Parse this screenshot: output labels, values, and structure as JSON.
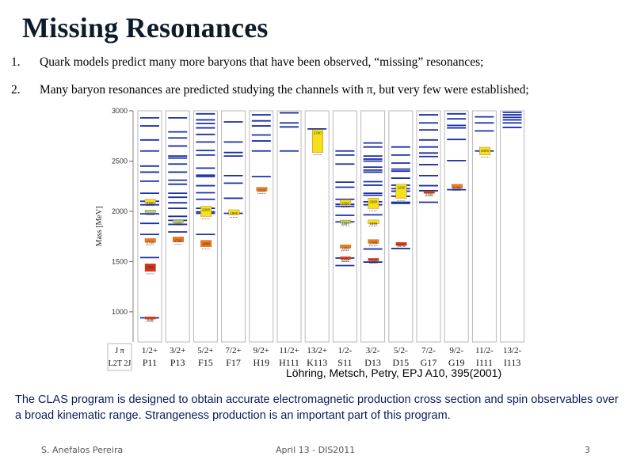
{
  "slide": {
    "title": "Missing Resonances",
    "bullets": [
      {
        "num": "1.",
        "text": "Quark models predict many more baryons that have been observed, “missing” resonances;"
      },
      {
        "num": "2.",
        "text": "Many baryon resonances are predicted studying the channels with π, but very  few were established;"
      }
    ],
    "citation": "Löhring, Metsch, Petry, EPJ A10, 395(2001)",
    "description": "The CLAS  program is designed to obtain accurate electromagnetic production cross section and spin observables over a broad kinematic range. Strangeness production is an important part of this program.",
    "footer": {
      "author": "S. Anefalos Pereira",
      "date": "April 13 -  DIS2011",
      "page": "3"
    }
  },
  "colors": {
    "prediction": "#1a2fa8",
    "observed_yellow": "#f5e11a",
    "observed_orange": "#f07a1a",
    "observed_red": "#d8331a",
    "observed_green": "#a8d46a",
    "panel_border": "#b8b8b8"
  },
  "chart_data": {
    "type": "level-diagram",
    "ylabel": "Mass [MeV]",
    "ylim": [
      700,
      3000
    ],
    "yticks": [
      1000,
      1500,
      2000,
      2500,
      3000
    ],
    "corner_label_top": "J π",
    "corner_label_bottom": "L2T 2J",
    "columns": [
      {
        "jp": "1/2+",
        "state": "P11",
        "predicted": [
          940,
          1540,
          1770,
          1880,
          1975,
          2065,
          2100,
          2180,
          2300,
          2390,
          2450,
          2600,
          2710,
          2850,
          2930
        ],
        "observed": [
          {
            "mass": 2100,
            "label": "2100",
            "color": "yellow",
            "height": 30
          },
          {
            "mass": 2000,
            "label": "",
            "color": "green",
            "height": 15
          },
          {
            "mass": 1710,
            "label": "1710",
            "color": "orange",
            "height": 30
          },
          {
            "mass": 1440,
            "label": "1440",
            "color": "red",
            "height": 60
          },
          {
            "mass": 939,
            "label": "939",
            "color": "red",
            "height": 4
          }
        ]
      },
      {
        "jp": "3/2+",
        "state": "P13",
        "predicted": [
          1795,
          1870,
          1910,
          1950,
          2030,
          2085,
          2140,
          2180,
          2270,
          2310,
          2390,
          2470,
          2530,
          2550,
          2650,
          2730,
          2790,
          2930
        ],
        "observed": [
          {
            "mass": 1900,
            "label": "1900",
            "color": "green",
            "height": 20
          },
          {
            "mass": 1720,
            "label": "1720",
            "color": "orange",
            "height": 40
          }
        ]
      },
      {
        "jp": "5/2+",
        "state": "F15",
        "predicted": [
          1770,
          1980,
          1995,
          2030,
          2120,
          2185,
          2255,
          2345,
          2360,
          2430,
          2560,
          2605,
          2690,
          2765,
          2830,
          2875,
          2910,
          2970
        ],
        "observed": [
          {
            "mass": 2000,
            "label": "2000",
            "color": "yellow",
            "height": 80
          },
          {
            "mass": 1680,
            "label": "1680",
            "color": "orange",
            "height": 50
          }
        ]
      },
      {
        "jp": "7/2+",
        "state": "F17",
        "predicted": [
          1980,
          2130,
          2280,
          2355,
          2550,
          2585,
          2690,
          2890
        ],
        "observed": [
          {
            "mass": 1990,
            "label": "1990",
            "color": "yellow",
            "height": 40
          }
        ]
      },
      {
        "jp": "9/2+",
        "state": "H19",
        "predicted": [
          2345,
          2600,
          2700,
          2760,
          2850,
          2900,
          2960
        ],
        "observed": [
          {
            "mass": 2220,
            "label": "2220",
            "color": "orange",
            "height": 30
          }
        ]
      },
      {
        "jp": "11/2+",
        "state": "H111",
        "predicted": [
          2600,
          2840,
          2880,
          2980
        ],
        "observed": []
      },
      {
        "jp": "13/2+",
        "state": "K113",
        "predicted": [
          2820
        ],
        "observed": [
          {
            "mass": 2700,
            "label": "2700",
            "color": "yellow",
            "height": 180
          }
        ]
      },
      {
        "jp": "1/2-",
        "state": "S11",
        "predicted": [
          1460,
          1535,
          1895,
          1960,
          2050,
          2070,
          2120,
          2240,
          2290,
          2470,
          2560,
          2600
        ],
        "observed": [
          {
            "mass": 2090,
            "label": "2090",
            "color": "yellow",
            "height": 40
          },
          {
            "mass": 1897,
            "label": "1897",
            "color": "green",
            "height": 25
          },
          {
            "mass": 1650,
            "label": "1650",
            "color": "orange",
            "height": 25
          },
          {
            "mass": 1535,
            "label": "1535",
            "color": "red",
            "height": 20
          }
        ]
      },
      {
        "jp": "3/2-",
        "state": "D13",
        "predicted": [
          1495,
          1625,
          1965,
          2065,
          2095,
          2160,
          2180,
          2260,
          2295,
          2390,
          2410,
          2440,
          2500,
          2520,
          2550,
          2640,
          2680
        ],
        "observed": [
          {
            "mass": 2080,
            "label": "2080",
            "color": "yellow",
            "height": 80
          },
          {
            "mass": 1895,
            "label": "1895",
            "color": "yellow",
            "height": 30
          },
          {
            "mass": 1700,
            "label": "1700",
            "color": "orange",
            "height": 30
          },
          {
            "mass": 1520,
            "label": "1520",
            "color": "red",
            "height": 8
          }
        ]
      },
      {
        "jp": "5/2-",
        "state": "D15",
        "predicted": [
          1630,
          2080,
          2090,
          2150,
          2200,
          2225,
          2260,
          2330,
          2400,
          2420,
          2480,
          2560,
          2640
        ],
        "observed": [
          {
            "mass": 2200,
            "label": "2200",
            "color": "yellow",
            "height": 110
          },
          {
            "mass": 1675,
            "label": "1675",
            "color": "red",
            "height": 25
          }
        ]
      },
      {
        "jp": "7/2-",
        "state": "G17",
        "predicted": [
          2090,
          2205,
          2255,
          2355,
          2465,
          2545,
          2580,
          2640,
          2710,
          2810,
          2880,
          2960
        ],
        "observed": [
          {
            "mass": 2190,
            "label": "2190",
            "color": "red",
            "height": 15
          }
        ]
      },
      {
        "jp": "9/2-",
        "state": "G19",
        "predicted": [
          2215,
          2505,
          2715,
          2830,
          2855,
          2920,
          2970
        ],
        "observed": [
          {
            "mass": 2250,
            "label": "2250",
            "color": "orange",
            "height": 30
          }
        ]
      },
      {
        "jp": "11/2-",
        "state": "I111",
        "predicted": [
          2600,
          2800,
          2880,
          2940
        ],
        "observed": [
          {
            "mass": 2600,
            "label": "2600",
            "color": "yellow",
            "height": 60
          }
        ]
      },
      {
        "jp": "13/2-",
        "state": "I113",
        "predicted": [
          2835,
          2880,
          2910,
          2935,
          2960,
          2985
        ],
        "observed": []
      }
    ]
  }
}
